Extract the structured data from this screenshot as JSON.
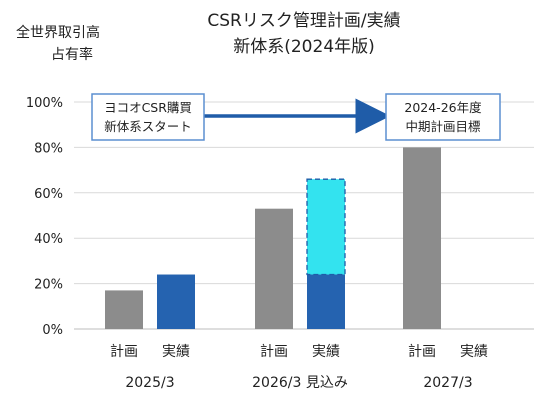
{
  "chart_data": {
    "type": "bar",
    "title": "CSRリスク管理計画/実績",
    "subtitle": "新体系(2024年版)",
    "ylabel": [
      "全世界取引高",
      "占有率"
    ],
    "ylim": [
      0,
      100
    ],
    "yticks": [
      0,
      20,
      40,
      60,
      80,
      100
    ],
    "ytick_labels": [
      "0%",
      "20%",
      "40%",
      "60%",
      "80%",
      "100%"
    ],
    "grid": true,
    "groups": [
      {
        "label": "2025/3",
        "bars": [
          {
            "label": "計画",
            "value": 17,
            "color": "#8c8c8c"
          },
          {
            "label": "実績",
            "value": 24,
            "color": "#2563b0"
          }
        ]
      },
      {
        "label": "2026/3 見込み",
        "bars": [
          {
            "label": "計画",
            "value": 53,
            "color": "#8c8c8c"
          },
          {
            "label": "実績",
            "value": 24,
            "color": "#2563b0",
            "projected_to": 66,
            "projected_color": "#33e3ef"
          }
        ]
      },
      {
        "label": "2027/3",
        "bars": [
          {
            "label": "計画",
            "value": 80,
            "color": "#8c8c8c"
          },
          {
            "label": "実績",
            "value": null,
            "color": "#2563b0"
          }
        ]
      }
    ],
    "annotations": {
      "start_box": [
        "ヨコオCSR購買",
        "新体系スタート"
      ],
      "target_box": [
        "2024-26年度",
        "中期計画目標"
      ],
      "arrow_color": "#1f5ca8",
      "box_border_color": "#5b8fd1"
    }
  }
}
